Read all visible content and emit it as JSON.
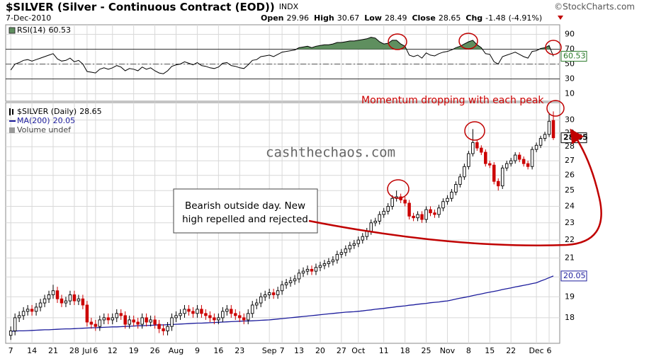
{
  "header": {
    "title": "$SILVER (Silver - Continuous Contract (EOD))",
    "exchange": "INDX",
    "date": "7-Dec-2010",
    "quote": [
      {
        "label": "Open",
        "value": 29.96
      },
      {
        "label": "High",
        "value": 30.67
      },
      {
        "label": "Low",
        "value": 28.49
      },
      {
        "label": "Close",
        "value": 28.65
      },
      {
        "label": "Chg",
        "value": -1.48
      }
    ],
    "change_pct": "(-4.91%)",
    "source": "©StockCharts.com"
  },
  "chart_data": [
    {
      "type": "rsi",
      "name": "RSI(14)",
      "color": "#000000",
      "fill_color": "#5f8f5f",
      "ylim": [
        0,
        100
      ],
      "yticks": [
        10,
        30,
        50,
        70,
        90
      ],
      "levels": [
        30,
        50,
        70
      ],
      "values": [
        42,
        50,
        52,
        55,
        56,
        54,
        56,
        58,
        60,
        62,
        64,
        57,
        54,
        55,
        58,
        53,
        55,
        50,
        40,
        39,
        38,
        43,
        45,
        43,
        45,
        48,
        46,
        41,
        44,
        43,
        41,
        46,
        43,
        45,
        41,
        38,
        37,
        41,
        47,
        49,
        50,
        53,
        51,
        49,
        52,
        48,
        47,
        45,
        44,
        46,
        51,
        52,
        48,
        47,
        45,
        44,
        49,
        55,
        56,
        60,
        61,
        62,
        60,
        63,
        66,
        67,
        68,
        69,
        72,
        73,
        74,
        72,
        74,
        75,
        76,
        76,
        77,
        79,
        79,
        80,
        81,
        81,
        82,
        83,
        84,
        86,
        85,
        80,
        77,
        78,
        82,
        82,
        77,
        74,
        62,
        60,
        62,
        58,
        65,
        62,
        61,
        64,
        66,
        67,
        69,
        72,
        74,
        77,
        80,
        82,
        76,
        72,
        64,
        63,
        53,
        50,
        60,
        62,
        64,
        66,
        63,
        60,
        58,
        67,
        68,
        71,
        72,
        75,
        60.53
      ]
    },
    {
      "type": "candlestick",
      "name": "$SILVER (Daily)",
      "up_color": "#000000",
      "down_color": "#cc0000",
      "log_y": true,
      "grid": true,
      "ylim": [
        16.85,
        31.2
      ],
      "yticks": [
        18,
        19,
        20,
        21,
        22,
        23,
        24,
        25,
        26,
        27,
        28,
        29,
        30
      ],
      "xlim": [
        -1.2,
        129.5
      ],
      "xticks": [
        {
          "value": 0,
          "label": "7"
        },
        {
          "value": 5,
          "label": "14"
        },
        {
          "value": 10,
          "label": "21"
        },
        {
          "value": 15,
          "label": "28"
        },
        {
          "value": 18,
          "label": "Jul"
        },
        {
          "value": 20,
          "label": "6"
        },
        {
          "value": 24,
          "label": "12"
        },
        {
          "value": 29,
          "label": "19"
        },
        {
          "value": 34,
          "label": "26"
        },
        {
          "value": 39,
          "label": "Aug"
        },
        {
          "value": 44,
          "label": "9"
        },
        {
          "value": 49,
          "label": "16"
        },
        {
          "value": 54,
          "label": "23"
        },
        {
          "value": 61,
          "label": "Sep"
        },
        {
          "value": 64,
          "label": "7"
        },
        {
          "value": 68,
          "label": "13"
        },
        {
          "value": 73,
          "label": "20"
        },
        {
          "value": 78,
          "label": "27"
        },
        {
          "value": 82,
          "label": "Oct"
        },
        {
          "value": 88,
          "label": "11"
        },
        {
          "value": 93,
          "label": "18"
        },
        {
          "value": 98,
          "label": "25"
        },
        {
          "value": 103,
          "label": "Nov"
        },
        {
          "value": 108,
          "label": "8"
        },
        {
          "value": 113,
          "label": "15"
        },
        {
          "value": 118,
          "label": "22"
        },
        {
          "value": 124,
          "label": "Dec"
        },
        {
          "value": 127,
          "label": "6"
        }
      ],
      "open": [
        17.2,
        17.4,
        18.0,
        18.1,
        18.3,
        18.4,
        18.3,
        18.5,
        18.7,
        18.9,
        19.1,
        19.3,
        18.9,
        18.7,
        18.8,
        19.1,
        18.8,
        18.9,
        18.6,
        17.8,
        17.7,
        17.6,
        17.9,
        18.0,
        17.9,
        18.0,
        18.2,
        18.1,
        17.7,
        17.9,
        17.8,
        17.7,
        18.0,
        17.8,
        17.9,
        17.7,
        17.5,
        17.4,
        17.6,
        18.0,
        18.1,
        18.2,
        18.4,
        18.3,
        18.2,
        18.4,
        18.2,
        18.1,
        18.0,
        17.9,
        18.0,
        18.3,
        18.4,
        18.2,
        18.1,
        18.0,
        17.9,
        18.2,
        18.6,
        18.7,
        19.0,
        19.1,
        19.2,
        19.1,
        19.3,
        19.6,
        19.7,
        19.8,
        19.9,
        20.2,
        20.3,
        20.4,
        20.3,
        20.5,
        20.6,
        20.7,
        20.8,
        20.9,
        21.2,
        21.3,
        21.5,
        21.7,
        21.8,
        22.0,
        22.2,
        22.5,
        23.0,
        23.1,
        23.5,
        23.7,
        24.0,
        24.5,
        24.6,
        24.4,
        24.2,
        23.4,
        23.3,
        23.5,
        23.2,
        23.8,
        23.6,
        23.5,
        23.9,
        24.3,
        24.5,
        24.9,
        25.4,
        25.9,
        26.6,
        27.5,
        28.3,
        27.9,
        27.6,
        26.8,
        26.7,
        25.6,
        25.3,
        26.5,
        26.8,
        27.0,
        27.4,
        27.1,
        26.8,
        26.6,
        27.8,
        28.1,
        28.6,
        28.9,
        29.96
      ],
      "high": [
        17.6,
        18.2,
        18.3,
        18.5,
        18.6,
        18.6,
        18.7,
        18.9,
        19.1,
        19.3,
        19.6,
        19.5,
        19.1,
        19.0,
        19.3,
        19.3,
        19.1,
        19.1,
        18.8,
        18.0,
        17.9,
        18.1,
        18.2,
        18.2,
        18.2,
        18.4,
        18.4,
        18.3,
        18.1,
        18.1,
        18.0,
        18.2,
        18.2,
        18.1,
        18.1,
        17.9,
        17.7,
        17.8,
        18.2,
        18.3,
        18.4,
        18.6,
        18.6,
        18.5,
        18.6,
        18.6,
        18.4,
        18.3,
        18.2,
        18.2,
        18.5,
        18.6,
        18.6,
        18.4,
        18.3,
        18.2,
        18.4,
        18.8,
        18.9,
        19.2,
        19.3,
        19.4,
        19.4,
        19.5,
        19.8,
        19.9,
        20.0,
        20.1,
        20.4,
        20.5,
        20.6,
        20.6,
        20.7,
        20.8,
        20.9,
        21.0,
        21.1,
        21.4,
        21.5,
        21.7,
        21.9,
        22.0,
        22.2,
        22.4,
        22.7,
        23.2,
        23.3,
        23.7,
        23.9,
        24.2,
        24.7,
        25.0,
        24.8,
        24.6,
        24.4,
        23.6,
        23.7,
        23.7,
        24.0,
        24.0,
        23.8,
        24.1,
        24.5,
        24.7,
        25.1,
        25.6,
        26.1,
        26.8,
        27.7,
        29.3,
        28.5,
        28.1,
        27.8,
        27.0,
        26.9,
        25.8,
        26.7,
        27.0,
        27.2,
        27.6,
        27.6,
        27.3,
        27.0,
        28.0,
        28.3,
        28.8,
        29.1,
        30.5,
        30.67
      ],
      "low": [
        17.0,
        17.2,
        17.8,
        17.9,
        18.1,
        18.1,
        18.1,
        18.3,
        18.5,
        18.7,
        18.9,
        18.7,
        18.5,
        18.5,
        18.6,
        18.6,
        18.6,
        18.4,
        17.6,
        17.5,
        17.4,
        17.4,
        17.7,
        17.7,
        17.7,
        17.8,
        17.9,
        17.5,
        17.5,
        17.6,
        17.5,
        17.5,
        17.6,
        17.6,
        17.5,
        17.3,
        17.2,
        17.2,
        17.4,
        17.8,
        17.9,
        18.0,
        18.1,
        18.0,
        18.0,
        18.0,
        17.9,
        17.8,
        17.7,
        17.7,
        17.8,
        18.1,
        18.0,
        17.9,
        17.8,
        17.7,
        17.7,
        18.0,
        18.4,
        18.5,
        18.8,
        18.9,
        18.9,
        18.9,
        19.1,
        19.4,
        19.5,
        19.6,
        19.7,
        20.0,
        20.1,
        20.1,
        20.1,
        20.3,
        20.4,
        20.5,
        20.6,
        20.7,
        21.0,
        21.1,
        21.3,
        21.5,
        21.6,
        21.8,
        22.0,
        22.3,
        22.8,
        22.9,
        23.3,
        23.5,
        23.8,
        24.3,
        24.2,
        24.0,
        23.2,
        23.1,
        23.1,
        23.0,
        23.0,
        23.4,
        23.3,
        23.3,
        23.7,
        24.1,
        24.3,
        24.7,
        25.2,
        25.7,
        26.4,
        27.3,
        27.7,
        27.4,
        26.6,
        26.5,
        25.4,
        25.0,
        25.1,
        26.3,
        26.6,
        26.8,
        26.9,
        26.6,
        26.4,
        26.4,
        27.6,
        27.9,
        28.4,
        28.7,
        28.49
      ],
      "close": [
        17.4,
        18.0,
        18.1,
        18.3,
        18.4,
        18.3,
        18.5,
        18.7,
        18.9,
        19.1,
        19.3,
        18.9,
        18.7,
        18.8,
        19.1,
        18.8,
        18.9,
        18.6,
        17.8,
        17.7,
        17.6,
        17.9,
        18.0,
        17.9,
        18.0,
        18.2,
        18.1,
        17.7,
        17.9,
        17.8,
        17.7,
        18.0,
        17.8,
        17.9,
        17.7,
        17.5,
        17.4,
        17.6,
        18.0,
        18.1,
        18.2,
        18.4,
        18.3,
        18.2,
        18.4,
        18.2,
        18.1,
        18.0,
        17.9,
        18.0,
        18.3,
        18.4,
        18.2,
        18.1,
        18.0,
        17.9,
        18.2,
        18.6,
        18.7,
        19.0,
        19.1,
        19.2,
        19.1,
        19.3,
        19.6,
        19.7,
        19.8,
        19.9,
        20.2,
        20.3,
        20.4,
        20.3,
        20.5,
        20.6,
        20.7,
        20.8,
        20.9,
        21.2,
        21.3,
        21.5,
        21.7,
        21.8,
        22.0,
        22.2,
        22.5,
        23.0,
        23.1,
        23.5,
        23.7,
        24.0,
        24.5,
        24.6,
        24.4,
        24.2,
        23.4,
        23.3,
        23.5,
        23.2,
        23.8,
        23.6,
        23.5,
        23.9,
        24.3,
        24.5,
        24.9,
        25.4,
        25.9,
        26.6,
        27.5,
        28.3,
        27.9,
        27.6,
        26.8,
        26.7,
        25.6,
        25.3,
        26.5,
        26.8,
        27.0,
        27.4,
        27.1,
        26.8,
        26.6,
        27.8,
        28.1,
        28.6,
        28.9,
        29.9,
        28.65
      ],
      "series": [
        {
          "name": "MA(200)",
          "color": "#1c1c9c",
          "values": [
            17.38,
            17.39,
            17.4,
            17.4,
            17.41,
            17.42,
            17.43,
            17.44,
            17.45,
            17.45,
            17.46,
            17.47,
            17.48,
            17.49,
            17.49,
            17.5,
            17.51,
            17.52,
            17.53,
            17.54,
            17.54,
            17.55,
            17.56,
            17.57,
            17.58,
            17.58,
            17.59,
            17.6,
            17.61,
            17.62,
            17.63,
            17.63,
            17.64,
            17.65,
            17.66,
            17.67,
            17.67,
            17.68,
            17.69,
            17.7,
            17.71,
            17.72,
            17.73,
            17.74,
            17.75,
            17.75,
            17.76,
            17.77,
            17.78,
            17.79,
            17.8,
            17.81,
            17.82,
            17.83,
            17.84,
            17.85,
            17.85,
            17.86,
            17.87,
            17.88,
            17.89,
            17.9,
            17.92,
            17.94,
            17.96,
            17.98,
            18.0,
            18.02,
            18.04,
            18.06,
            18.08,
            18.1,
            18.12,
            18.14,
            18.16,
            18.18,
            18.2,
            18.22,
            18.24,
            18.26,
            18.27,
            18.28,
            18.3,
            18.32,
            18.35,
            18.37,
            18.4,
            18.42,
            18.44,
            18.47,
            18.49,
            18.52,
            18.54,
            18.56,
            18.59,
            18.61,
            18.64,
            18.66,
            18.68,
            18.71,
            18.73,
            18.75,
            18.78,
            18.8,
            18.84,
            18.89,
            18.93,
            18.97,
            19.01,
            19.06,
            19.1,
            19.14,
            19.19,
            19.23,
            19.27,
            19.31,
            19.36,
            19.4,
            19.44,
            19.49,
            19.53,
            19.57,
            19.61,
            19.66,
            19.7,
            19.79,
            19.87,
            19.96,
            20.05
          ]
        }
      ],
      "volume_label": "Volume undef",
      "watermark": "cashthechaos.com",
      "annotations": {
        "momentum": "Momentum dropping with each peak",
        "box": [
          "Bearish outside day. New",
          "high repelled and rejected"
        ]
      }
    }
  ]
}
